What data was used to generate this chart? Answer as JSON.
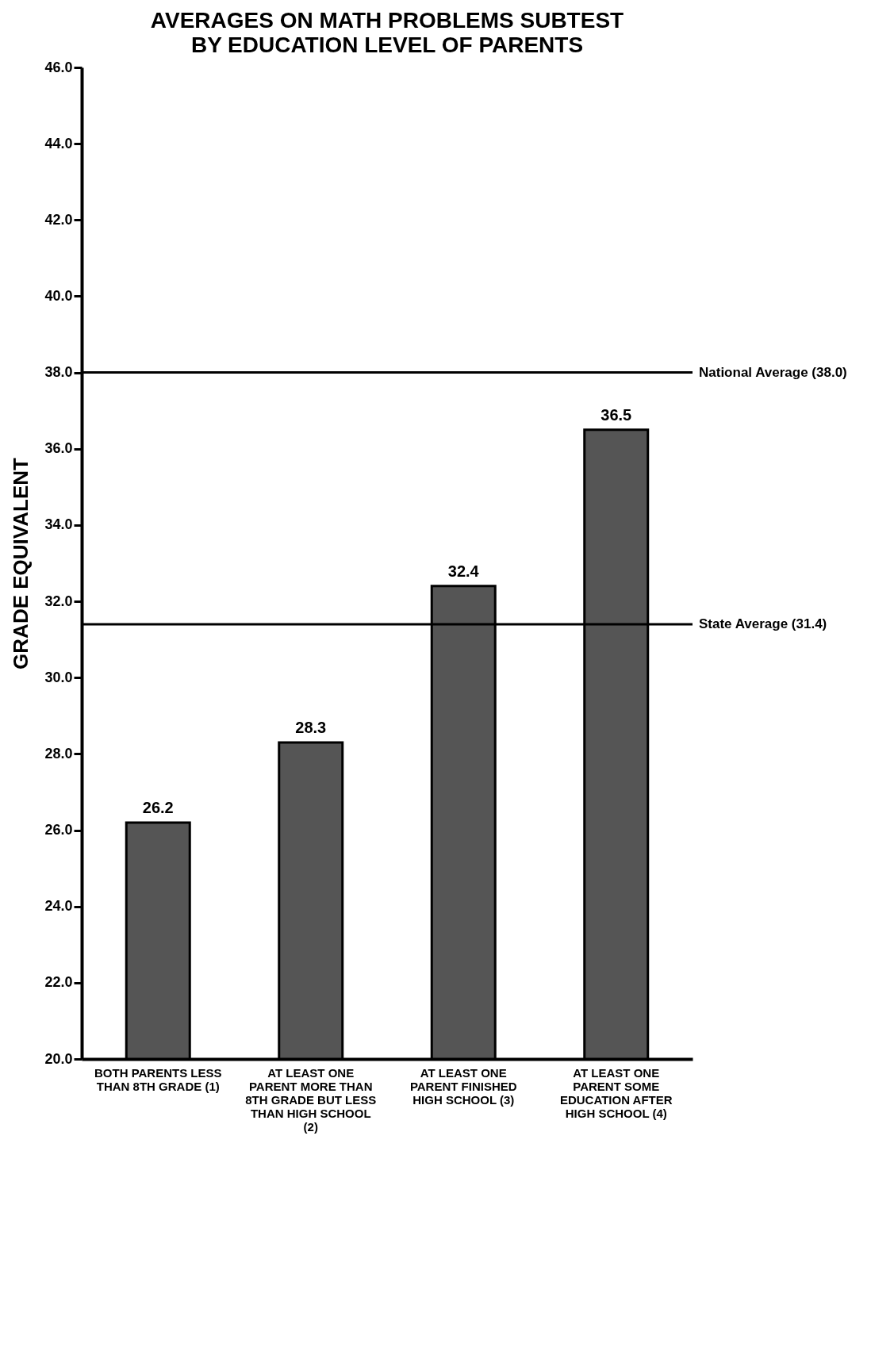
{
  "chart_data": {
    "type": "bar",
    "title": "AVERAGES ON MATH PROBLEMS SUBTEST",
    "subtitle": "BY EDUCATION LEVEL OF PARENTS",
    "ylabel": "GRADE EQUIVALENT",
    "categories": [
      "BOTH PARENTS LESS THAN 8TH GRADE (1)",
      "AT LEAST ONE PARENT MORE THAN 8TH GRADE BUT LESS THAN HIGH SCHOOL (2)",
      "AT LEAST ONE PARENT FINISHED HIGH SCHOOL (3)",
      "AT LEAST ONE PARENT SOME EDUCATION AFTER HIGH SCHOOL (4)"
    ],
    "values": [
      26.2,
      28.3,
      32.4,
      36.5
    ],
    "color": "#555555",
    "data_labels": true,
    "ylim": [
      20,
      46
    ],
    "yticks": [
      {
        "value": 20,
        "label": "20.0"
      },
      {
        "value": 22,
        "label": "22.0"
      },
      {
        "value": 24,
        "label": "24.0"
      },
      {
        "value": 26,
        "label": "26.0"
      },
      {
        "value": 28,
        "label": "28.0"
      },
      {
        "value": 30,
        "label": "30.0"
      },
      {
        "value": 32,
        "label": "32.0"
      },
      {
        "value": 34,
        "label": "34.0"
      },
      {
        "value": 36,
        "label": "36.0"
      },
      {
        "value": 38,
        "label": "38.0"
      },
      {
        "value": 40,
        "label": "40.0"
      },
      {
        "value": 42,
        "label": "42.0"
      },
      {
        "value": 44,
        "label": "44.0"
      },
      {
        "value": 46,
        "label": "46.0"
      }
    ],
    "ref_lines": [
      {
        "axis": "y",
        "value": 38.0,
        "label": "National Average (38.0)"
      },
      {
        "axis": "y",
        "value": 31.4,
        "label": "State Average (31.4)"
      }
    ],
    "grid": false
  }
}
